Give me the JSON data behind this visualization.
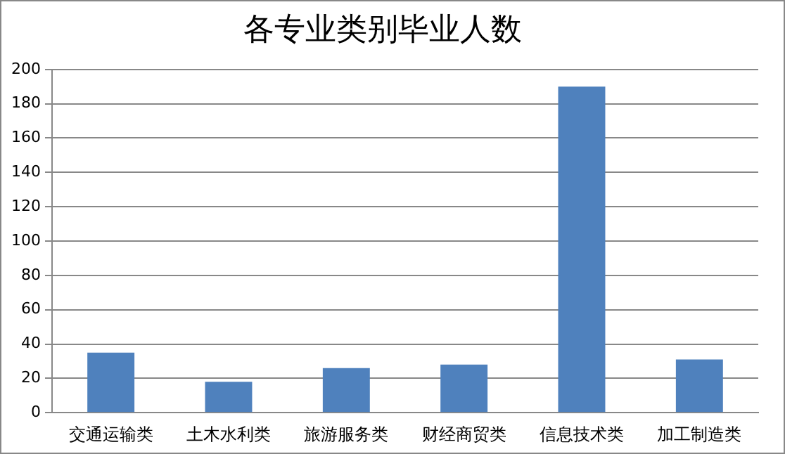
{
  "chart_data": {
    "type": "bar",
    "title": "各专业类别毕业人数",
    "categories": [
      "交通运输类",
      "土木水利类",
      "旅游服务类",
      "财经商贸类",
      "信息技术类",
      "加工制造类"
    ],
    "values": [
      35,
      18,
      26,
      28,
      190,
      31
    ],
    "color": "#4f81bd",
    "ylim": [
      0,
      200
    ],
    "yticks": [
      0,
      20,
      40,
      60,
      80,
      100,
      120,
      140,
      160,
      180,
      200
    ],
    "grid": "y",
    "legend": false
  }
}
